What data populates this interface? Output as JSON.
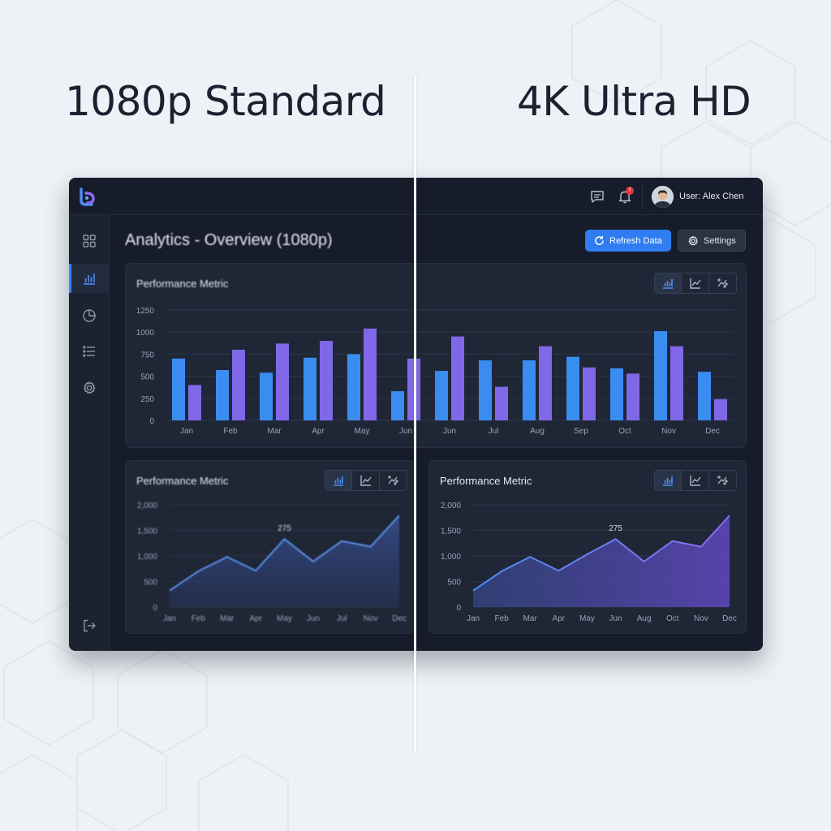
{
  "comparison": {
    "left_label": "1080p Standard",
    "right_label": "4K Ultra HD"
  },
  "topbar": {
    "user_label": "User: Alex Chen",
    "notification_badge": "!",
    "icons": [
      "app-logo-icon",
      "message-icon",
      "bell-icon",
      "user-avatar"
    ]
  },
  "sidebar": {
    "items": [
      {
        "icon": "dashboard-grid-icon",
        "active": false
      },
      {
        "icon": "bar-chart-icon",
        "active": true
      },
      {
        "icon": "pie-chart-icon",
        "active": false
      },
      {
        "icon": "list-icon",
        "active": false
      },
      {
        "icon": "gear-icon",
        "active": false
      }
    ],
    "logout_icon": "logout-icon"
  },
  "header": {
    "title": "Analytics - Overview (1080p)",
    "refresh_label": "Refresh Data",
    "settings_label": "Settings"
  },
  "colors": {
    "background": "#eef1f5",
    "app": "#161c29",
    "panel": "#1f2737",
    "accent": "#2f7df0",
    "bar_primary": "#3b8cf0",
    "bar_secondary": "#8068e8"
  },
  "chart_data": [
    {
      "type": "bar",
      "title": "Performance Metric",
      "categories": [
        "Jan",
        "Feb",
        "Mar",
        "Apr",
        "May",
        "Jun",
        "Jun",
        "Jul",
        "Aug",
        "Sep",
        "Oct",
        "Nov",
        "Dec"
      ],
      "series": [
        {
          "values": [
            700,
            570,
            540,
            710,
            750,
            330,
            560,
            680,
            680,
            720,
            590,
            1010,
            550
          ]
        },
        {
          "values": [
            400,
            800,
            870,
            900,
            1040,
            700,
            950,
            380,
            840,
            600,
            530,
            840,
            240
          ]
        }
      ],
      "ylim": [
        0,
        1250
      ],
      "yticks": [
        "0",
        "250",
        "500",
        "750",
        "1000",
        "1250"
      ],
      "grid": true,
      "chart_type_options": [
        "bar-chart-icon",
        "line-chart-icon",
        "scatter-chart-icon"
      ]
    },
    {
      "type": "area",
      "title": "Performance Metric",
      "categories": [
        "Jan",
        "Feb",
        "Mar",
        "Apr",
        "May",
        "Jun",
        "Jul",
        "Nov",
        "Dec"
      ],
      "values": [
        320,
        700,
        980,
        710,
        1330,
        890,
        1290,
        1180,
        1790
      ],
      "annotation": {
        "label": "275",
        "category": "May"
      },
      "ylim": [
        0,
        2000
      ],
      "yticks": [
        "0",
        "500",
        "1,000",
        "1,500",
        "2,000"
      ],
      "grid": true,
      "chart_type_options": [
        "bar-chart-icon",
        "line-chart-icon",
        "scatter-chart-icon"
      ]
    },
    {
      "type": "area",
      "title": "Performance Metric",
      "categories": [
        "Jan",
        "Feb",
        "Mar",
        "Apr",
        "May",
        "Jun",
        "Aug",
        "Oct",
        "Nov",
        "Dec"
      ],
      "values": [
        320,
        700,
        980,
        710,
        1030,
        1330,
        890,
        1290,
        1180,
        1790
      ],
      "annotation": {
        "label": "275",
        "category": "Jun"
      },
      "ylim": [
        0,
        2000
      ],
      "yticks": [
        "0",
        "500",
        "1,000",
        "1,500",
        "2,000"
      ],
      "grid": true,
      "chart_type_options": [
        "bar-chart-icon",
        "line-chart-icon",
        "scatter-chart-icon"
      ]
    }
  ]
}
